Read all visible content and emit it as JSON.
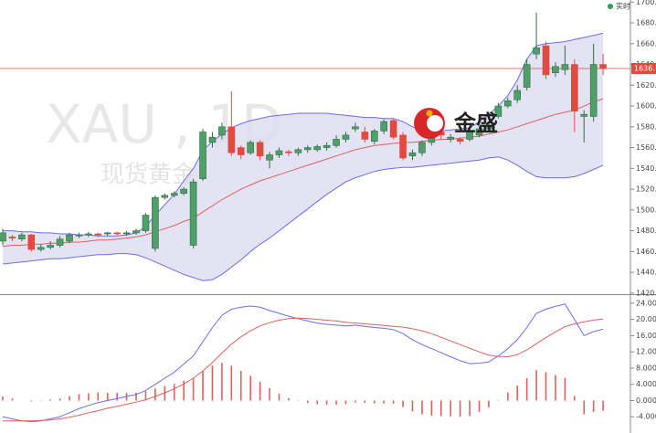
{
  "chart_data": [
    {
      "type": "candlestick",
      "watermark": "XAU , 1D",
      "watermark_subtitle": "现货黄金",
      "logo": "金盛",
      "legend": "实时",
      "legend_color": "#2e9e5a",
      "up_color": "#4f9f68",
      "down_color": "#e04a3f",
      "open": [
        1470,
        1474,
        1472,
        1476,
        1462,
        1464,
        1466,
        1470,
        1475,
        1476,
        1477,
        1477,
        1478,
        1477,
        1478,
        1480,
        1463,
        1512,
        1514,
        1516,
        1466,
        1530,
        1565,
        1572,
        1580,
        1560,
        1555,
        1565,
        1548,
        1553,
        1556,
        1555,
        1558,
        1558,
        1560,
        1562,
        1568,
        1578,
        1575,
        1566,
        1576,
        1586,
        1572,
        1552,
        1555,
        1565,
        1575,
        1568,
        1568,
        1568,
        1572,
        1578,
        1590,
        1600,
        1606,
        1618,
        1650,
        1658,
        1632,
        1635,
        1640,
        1590,
        1590,
        1640
      ],
      "high": [
        1482,
        1476,
        1478,
        1477,
        1467,
        1470,
        1475,
        1478,
        1478,
        1479,
        1478,
        1479,
        1479,
        1480,
        1482,
        1497,
        1514,
        1516,
        1518,
        1522,
        1530,
        1578,
        1575,
        1584,
        1614,
        1562,
        1567,
        1567,
        1556,
        1560,
        1558,
        1560,
        1562,
        1563,
        1565,
        1572,
        1575,
        1584,
        1580,
        1578,
        1587,
        1588,
        1575,
        1558,
        1567,
        1583,
        1578,
        1573,
        1570,
        1577,
        1580,
        1583,
        1603,
        1608,
        1620,
        1645,
        1690,
        1662,
        1642,
        1658,
        1645,
        1596,
        1660,
        1650
      ],
      "low": [
        1466,
        1470,
        1470,
        1460,
        1460,
        1462,
        1464,
        1468,
        1473,
        1474,
        1474,
        1475,
        1475,
        1475,
        1476,
        1478,
        1460,
        1510,
        1512,
        1514,
        1463,
        1528,
        1560,
        1568,
        1552,
        1549,
        1553,
        1548,
        1540,
        1550,
        1552,
        1552,
        1555,
        1556,
        1557,
        1560,
        1565,
        1575,
        1565,
        1563,
        1573,
        1568,
        1548,
        1548,
        1552,
        1562,
        1568,
        1565,
        1563,
        1566,
        1570,
        1575,
        1588,
        1598,
        1603,
        1615,
        1645,
        1626,
        1628,
        1630,
        1575,
        1565,
        1585,
        1630
      ],
      "close": [
        1478,
        1473,
        1476,
        1462,
        1464,
        1466,
        1472,
        1476,
        1476,
        1477,
        1476,
        1478,
        1477,
        1478,
        1480,
        1495,
        1512,
        1514,
        1516,
        1520,
        1527,
        1575,
        1570,
        1580,
        1555,
        1553,
        1565,
        1552,
        1553,
        1557,
        1555,
        1558,
        1560,
        1561,
        1562,
        1568,
        1572,
        1580,
        1568,
        1576,
        1585,
        1570,
        1550,
        1555,
        1565,
        1580,
        1572,
        1570,
        1566,
        1575,
        1578,
        1580,
        1600,
        1605,
        1615,
        1640,
        1656,
        1630,
        1638,
        1640,
        1595,
        1592,
        1640,
        1636.1
      ],
      "bollinger": {
        "band_color": "#6b6bf0",
        "fill": "#dcdcf0",
        "middle_color": "#e06060",
        "upper": [
          1480,
          1480,
          1479,
          1479,
          1478,
          1478,
          1477,
          1477,
          1476,
          1476,
          1475,
          1475,
          1475,
          1476,
          1478,
          1484,
          1495,
          1505,
          1515,
          1528,
          1540,
          1557,
          1566,
          1573,
          1579,
          1583,
          1586,
          1588,
          1590,
          1591,
          1592,
          1593,
          1593,
          1593,
          1593,
          1592,
          1591,
          1590,
          1589,
          1589,
          1588,
          1588,
          1585,
          1580,
          1576,
          1575,
          1576,
          1577,
          1578,
          1579,
          1585,
          1592,
          1600,
          1610,
          1625,
          1645,
          1658,
          1660,
          1661,
          1662,
          1664,
          1666,
          1668,
          1670
        ],
        "middle": [
          1465,
          1466,
          1466,
          1467,
          1467,
          1468,
          1468,
          1469,
          1469,
          1470,
          1471,
          1471,
          1472,
          1473,
          1474,
          1476,
          1479,
          1482,
          1485,
          1489,
          1492,
          1498,
          1504,
          1510,
          1515,
          1520,
          1524,
          1528,
          1531,
          1534,
          1537,
          1540,
          1543,
          1546,
          1549,
          1552,
          1555,
          1558,
          1560,
          1562,
          1563,
          1564,
          1565,
          1565,
          1566,
          1567,
          1568,
          1568,
          1569,
          1570,
          1571,
          1573,
          1575,
          1577,
          1580,
          1583,
          1586,
          1589,
          1592,
          1594,
          1596,
          1600,
          1604,
          1607
        ],
        "lower": [
          1448,
          1449,
          1450,
          1451,
          1452,
          1453,
          1453,
          1454,
          1455,
          1456,
          1457,
          1457,
          1458,
          1458,
          1457,
          1454,
          1450,
          1446,
          1442,
          1438,
          1435,
          1432,
          1433,
          1438,
          1445,
          1452,
          1460,
          1467,
          1473,
          1480,
          1487,
          1494,
          1501,
          1508,
          1515,
          1521,
          1527,
          1531,
          1534,
          1537,
          1539,
          1540,
          1541,
          1541,
          1542,
          1543,
          1544,
          1545,
          1546,
          1547,
          1548,
          1550,
          1551,
          1548,
          1543,
          1537,
          1532,
          1531,
          1531,
          1531,
          1532,
          1535,
          1539,
          1543
        ]
      },
      "last_price_color": "#e04a3f",
      "ylim": [
        1419,
        1702
      ],
      "yticks": [
        {
          "value": 1420,
          "label": "1420.00"
        },
        {
          "value": 1440,
          "label": "1440.00"
        },
        {
          "value": 1460,
          "label": "1460.00"
        },
        {
          "value": 1480,
          "label": "1480.00"
        },
        {
          "value": 1500,
          "label": "1500.00"
        },
        {
          "value": 1520,
          "label": "1520.00"
        },
        {
          "value": 1540,
          "label": "1540.00"
        },
        {
          "value": 1560,
          "label": "1560.00"
        },
        {
          "value": 1580,
          "label": "1580.00"
        },
        {
          "value": 1600,
          "label": "1600.00"
        },
        {
          "value": 1620,
          "label": "1620.00"
        },
        {
          "value": 1640,
          "label": "1640.00"
        },
        {
          "value": 1660,
          "label": "1660.00"
        },
        {
          "value": 1680,
          "label": "1680.00"
        },
        {
          "value": 1700,
          "label": "1700.00"
        }
      ]
    },
    {
      "type": "macd",
      "series": [
        {
          "color": "#6b6bf0",
          "values": [
            -4,
            -4.5,
            -5,
            -5.2,
            -5,
            -4.5,
            -4,
            -3,
            -2,
            -1.2,
            -0.5,
            0,
            0.5,
            1,
            1.5,
            2.5,
            4,
            5.5,
            7,
            9,
            11,
            14.5,
            18,
            21,
            22.5,
            23,
            23.3,
            23,
            22.2,
            21.5,
            20.8,
            20.2,
            19.6,
            19.1,
            18.8,
            18.6,
            18.4,
            18.6,
            18.3,
            18,
            17.8,
            17.5,
            16.5,
            15,
            13.8,
            12.8,
            11.8,
            10.8,
            9.8,
            9.1,
            9.2,
            9.5,
            11,
            12.8,
            15,
            18,
            21.5,
            22.5,
            23.2,
            23.8,
            20,
            16,
            17,
            17.6
          ]
        },
        {
          "color": "#e06060",
          "values": [
            -5,
            -5,
            -5,
            -5,
            -4.9,
            -4.8,
            -4.5,
            -4.1,
            -3.6,
            -3,
            -2.5,
            -1.9,
            -1.4,
            -0.9,
            -0.4,
            0.2,
            1,
            1.9,
            2.9,
            4.1,
            5.5,
            7.3,
            9.4,
            11.7,
            13.9,
            15.7,
            17.2,
            18.4,
            19.2,
            19.8,
            20.2,
            20.3,
            20.2,
            20,
            19.8,
            19.6,
            19.3,
            19.1,
            18.9,
            18.7,
            18.5,
            18.3,
            18.1,
            17.7,
            17.2,
            16.5,
            15.6,
            14.7,
            13.8,
            12.9,
            12,
            11.2,
            10.9,
            10.8,
            11.3,
            12.5,
            14,
            15.5,
            16.9,
            18.2,
            18.9,
            19.4,
            19.8,
            20.1
          ]
        }
      ],
      "histogram": {
        "color": "#e06060",
        "values": [
          1,
          0.5,
          0,
          -0.2,
          -0.1,
          0.3,
          0.5,
          1.1,
          1.6,
          1.8,
          2,
          1.9,
          1.9,
          1.9,
          1.9,
          2.3,
          3,
          3.6,
          4.1,
          4.9,
          5.5,
          7.2,
          8.6,
          9.3,
          8.6,
          7.3,
          6.1,
          4.6,
          3,
          1.7,
          0.6,
          -0.1,
          -0.6,
          -0.9,
          -1,
          -1,
          -0.9,
          -0.5,
          -0.6,
          -0.7,
          -0.7,
          -0.8,
          -1.6,
          -2.7,
          -3.4,
          -3.7,
          -3.8,
          -3.9,
          -4,
          -3.8,
          -2.8,
          -1.7,
          0.1,
          2,
          3.7,
          5.5,
          7.5,
          7,
          6.3,
          5.6,
          1.1,
          -3.4,
          -2.8,
          -2.5
        ]
      },
      "ylim": [
        -8,
        26
      ],
      "yticks": [
        {
          "value": -4,
          "label": "-4.000"
        },
        {
          "value": 0,
          "label": "0.0000"
        },
        {
          "value": 4,
          "label": "4.0000"
        },
        {
          "value": 8,
          "label": "8.0000"
        },
        {
          "value": 12,
          "label": "12.000"
        },
        {
          "value": 16,
          "label": "16.000"
        },
        {
          "value": 20,
          "label": "20.000"
        },
        {
          "value": 24,
          "label": "24.000"
        }
      ]
    }
  ]
}
